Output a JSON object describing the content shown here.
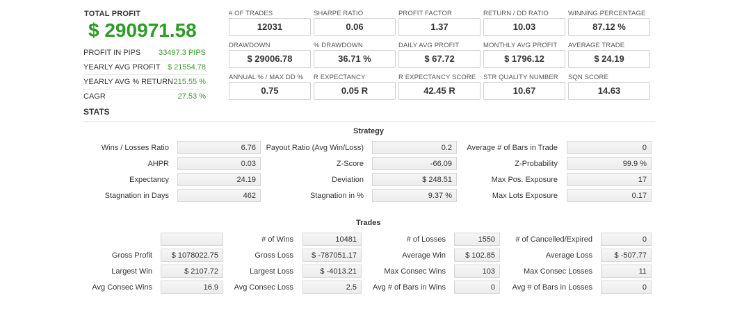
{
  "summary": {
    "total_profit_label": "TOTAL PROFIT",
    "total_profit_value": "$ 290971.58",
    "rows": [
      {
        "label": "PROFIT IN PIPS",
        "value": "33497.3 PIPS"
      },
      {
        "label": "YEARLY AVG PROFIT",
        "value": "$ 21554.78"
      },
      {
        "label": "YEARLY AVG % RETURN",
        "value": "215.55 %"
      },
      {
        "label": "CAGR",
        "value": "27.53 %"
      }
    ]
  },
  "metrics": [
    {
      "label": "# OF TRADES",
      "value": "12031"
    },
    {
      "label": "SHARPE RATIO",
      "value": "0.06"
    },
    {
      "label": "PROFIT FACTOR",
      "value": "1.37"
    },
    {
      "label": "RETURN / DD RATIO",
      "value": "10.03"
    },
    {
      "label": "WINNING PERCENTAGE",
      "value": "87.12 %"
    },
    {
      "label": "DRAWDOWN",
      "value": "$ 29006.78"
    },
    {
      "label": "% DRAWDOWN",
      "value": "36.71 %"
    },
    {
      "label": "DAILY AVG PROFIT",
      "value": "$ 67.72"
    },
    {
      "label": "MONTHLY AVG PROFIT",
      "value": "$ 1796.12"
    },
    {
      "label": "AVERAGE TRADE",
      "value": "$ 24.19"
    },
    {
      "label": "ANNUAL % / MAX DD %",
      "value": "0.75"
    },
    {
      "label": "R EXPECTANCY",
      "value": "0.05 R"
    },
    {
      "label": "R EXPECTANCY SCORE",
      "value": "42.45 R"
    },
    {
      "label": "STR QUALITY NUMBER",
      "value": "10.67"
    },
    {
      "label": "SQN SCORE",
      "value": "14.63"
    }
  ],
  "stats": {
    "title": "STATS",
    "strategy": {
      "title": "Strategy",
      "rows": [
        [
          {
            "label": "Wins / Losses Ratio",
            "value": "6.76"
          },
          {
            "label": "Payout Ratio (Avg Win/Loss)",
            "value": "0.2"
          },
          {
            "label": "Average # of Bars in Trade",
            "value": "0"
          }
        ],
        [
          {
            "label": "AHPR",
            "value": "0.03"
          },
          {
            "label": "Z-Score",
            "value": "-66.09"
          },
          {
            "label": "Z-Probability",
            "value": "99.9 %"
          }
        ],
        [
          {
            "label": "Expectancy",
            "value": "24.19"
          },
          {
            "label": "Deviation",
            "value": "$ 248.51"
          },
          {
            "label": "Max Pos. Exposure",
            "value": "17"
          }
        ],
        [
          {
            "label": "Stagnation in Days",
            "value": "462"
          },
          {
            "label": "Stagnation in %",
            "value": "9.37 %"
          },
          {
            "label": "Max Lots Exposure",
            "value": "0.17"
          }
        ]
      ]
    },
    "trades": {
      "title": "Trades",
      "rows": [
        [
          {
            "label": "",
            "value": ""
          },
          {
            "label": "# of Wins",
            "value": "10481"
          },
          {
            "label": "# of Losses",
            "value": "1550"
          },
          {
            "label": "# of Cancelled/Expired",
            "value": "0"
          }
        ],
        [
          {
            "label": "Gross Profit",
            "value": "$ 1078022.75"
          },
          {
            "label": "Gross Loss",
            "value": "$ -787051.17"
          },
          {
            "label": "Average Win",
            "value": "$ 102.85"
          },
          {
            "label": "Average Loss",
            "value": "$ -507.77"
          }
        ],
        [
          {
            "label": "Largest Win",
            "value": "$ 2107.72"
          },
          {
            "label": "Largest Loss",
            "value": "$ -4013.21"
          },
          {
            "label": "Max Consec Wins",
            "value": "103"
          },
          {
            "label": "Max Consec Losses",
            "value": "11"
          }
        ],
        [
          {
            "label": "Avg Consec Wins",
            "value": "16.9"
          },
          {
            "label": "Avg Consec Loss",
            "value": "2.5"
          },
          {
            "label": "Avg # of Bars in Wins",
            "value": "0"
          },
          {
            "label": "Avg # of Bars in Losses",
            "value": "0"
          }
        ]
      ]
    }
  }
}
